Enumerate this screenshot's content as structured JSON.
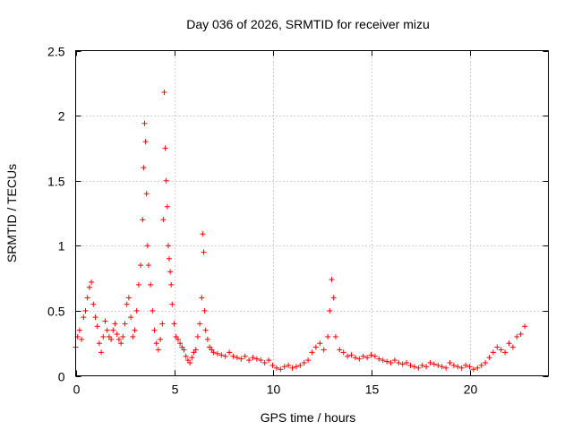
{
  "chart_data": {
    "type": "scatter",
    "title": "Day 036 of 2026, SRMTID for receiver mizu",
    "xlabel": "GPS time / hours",
    "ylabel": "SRMTID / TECUs",
    "xlim": [
      0,
      24
    ],
    "ylim": [
      0,
      2.5
    ],
    "xticks": [
      0,
      5,
      10,
      15,
      20
    ],
    "yticks": [
      0,
      0.5,
      1,
      1.5,
      2,
      2.5
    ],
    "xtick_labels": [
      "0",
      "5",
      "10",
      "15",
      "20"
    ],
    "ytick_labels": [
      "0",
      "0.5",
      "1",
      "1.5",
      "2",
      "2.5"
    ],
    "grid": true,
    "marker": "+",
    "color": "#ff0000",
    "series": [
      {
        "name": "SRMTID",
        "x": [
          0.0,
          0.1,
          0.2,
          0.3,
          0.4,
          0.5,
          0.6,
          0.7,
          0.8,
          0.9,
          1.0,
          1.1,
          1.2,
          1.3,
          1.4,
          1.5,
          1.6,
          1.7,
          1.8,
          1.9,
          2.0,
          2.1,
          2.2,
          2.3,
          2.4,
          2.5,
          2.6,
          2.7,
          2.8,
          2.9,
          3.0,
          3.1,
          3.2,
          3.3,
          3.4,
          3.45,
          3.5,
          3.55,
          3.6,
          3.65,
          3.7,
          3.8,
          3.9,
          4.0,
          4.1,
          4.2,
          4.3,
          4.4,
          4.45,
          4.5,
          4.55,
          4.6,
          4.65,
          4.7,
          4.75,
          4.8,
          4.85,
          4.9,
          5.0,
          5.1,
          5.2,
          5.3,
          5.4,
          5.5,
          5.6,
          5.7,
          5.8,
          5.9,
          6.0,
          6.1,
          6.2,
          6.3,
          6.4,
          6.45,
          6.5,
          6.55,
          6.6,
          6.7,
          6.8,
          6.9,
          7.0,
          7.2,
          7.4,
          7.6,
          7.8,
          8.0,
          8.2,
          8.4,
          8.6,
          8.8,
          9.0,
          9.2,
          9.4,
          9.6,
          9.8,
          10.0,
          10.2,
          10.4,
          10.6,
          10.8,
          11.0,
          11.2,
          11.4,
          11.6,
          11.8,
          12.0,
          12.2,
          12.4,
          12.6,
          12.8,
          12.9,
          13.0,
          13.1,
          13.2,
          13.4,
          13.6,
          13.8,
          14.0,
          14.2,
          14.4,
          14.6,
          14.8,
          15.0,
          15.2,
          15.4,
          15.6,
          15.8,
          16.0,
          16.2,
          16.4,
          16.6,
          16.8,
          17.0,
          17.2,
          17.4,
          17.6,
          17.8,
          18.0,
          18.2,
          18.4,
          18.6,
          18.8,
          19.0,
          19.2,
          19.4,
          19.6,
          19.8,
          20.0,
          20.2,
          20.4,
          20.6,
          20.8,
          21.0,
          21.2,
          21.4,
          21.6,
          21.8,
          22.0,
          22.2,
          22.4,
          22.6,
          22.8
        ],
        "y": [
          0.22,
          0.3,
          0.35,
          0.28,
          0.45,
          0.5,
          0.6,
          0.68,
          0.72,
          0.55,
          0.45,
          0.38,
          0.25,
          0.18,
          0.3,
          0.42,
          0.35,
          0.3,
          0.28,
          0.35,
          0.4,
          0.32,
          0.28,
          0.25,
          0.3,
          0.4,
          0.55,
          0.6,
          0.45,
          0.3,
          0.35,
          0.5,
          0.7,
          0.85,
          1.2,
          1.6,
          1.94,
          1.8,
          1.4,
          1.0,
          0.85,
          0.7,
          0.5,
          0.35,
          0.25,
          0.2,
          0.28,
          0.4,
          1.2,
          2.18,
          1.75,
          1.5,
          1.3,
          1.0,
          0.9,
          0.8,
          0.7,
          0.55,
          0.4,
          0.3,
          0.28,
          0.25,
          0.22,
          0.2,
          0.15,
          0.12,
          0.1,
          0.14,
          0.18,
          0.2,
          0.3,
          0.4,
          0.6,
          1.09,
          0.95,
          0.5,
          0.35,
          0.28,
          0.22,
          0.2,
          0.18,
          0.17,
          0.16,
          0.15,
          0.18,
          0.15,
          0.14,
          0.13,
          0.15,
          0.12,
          0.14,
          0.13,
          0.12,
          0.1,
          0.12,
          0.08,
          0.06,
          0.05,
          0.07,
          0.08,
          0.06,
          0.07,
          0.08,
          0.1,
          0.12,
          0.18,
          0.22,
          0.25,
          0.2,
          0.3,
          0.5,
          0.74,
          0.6,
          0.3,
          0.2,
          0.18,
          0.15,
          0.16,
          0.14,
          0.13,
          0.15,
          0.14,
          0.16,
          0.15,
          0.13,
          0.12,
          0.11,
          0.1,
          0.12,
          0.1,
          0.09,
          0.1,
          0.08,
          0.07,
          0.06,
          0.08,
          0.07,
          0.1,
          0.09,
          0.08,
          0.07,
          0.06,
          0.1,
          0.08,
          0.07,
          0.06,
          0.08,
          0.07,
          0.05,
          0.06,
          0.08,
          0.1,
          0.14,
          0.18,
          0.22,
          0.2,
          0.18,
          0.25,
          0.22,
          0.3,
          0.32,
          0.38
        ]
      }
    ]
  }
}
